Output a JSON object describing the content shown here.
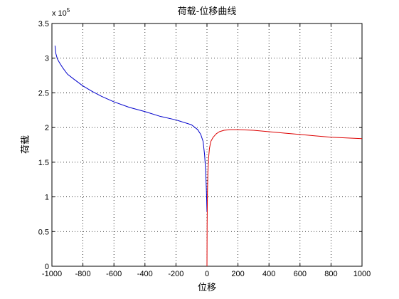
{
  "chart_data": {
    "type": "line",
    "title": "荷载-位移曲线",
    "xlabel": "位移",
    "ylabel": "荷载",
    "xlim": [
      -1000,
      1000
    ],
    "ylim": [
      0,
      3.5
    ],
    "y_multiplier_base": "x 10",
    "y_multiplier_exp": "5",
    "x_ticks": [
      "-1000",
      "-800",
      "-600",
      "-400",
      "-200",
      "0",
      "200",
      "400",
      "600",
      "800",
      "1000"
    ],
    "y_ticks": [
      "0",
      "0.5",
      "1",
      "1.5",
      "2",
      "2.5",
      "3",
      "3.5"
    ],
    "grid": true,
    "series": [
      {
        "color": "#0000cc",
        "x": [
          -980,
          -975,
          -965,
          -950,
          -930,
          -900,
          -860,
          -800,
          -740,
          -680,
          -600,
          -500,
          -400,
          -300,
          -200,
          -100,
          -60,
          -40,
          -25,
          -15,
          -8,
          -3,
          0
        ],
        "y": [
          3.18,
          3.07,
          2.99,
          2.93,
          2.86,
          2.77,
          2.7,
          2.6,
          2.52,
          2.45,
          2.37,
          2.29,
          2.23,
          2.16,
          2.11,
          2.04,
          1.97,
          1.9,
          1.8,
          1.6,
          1.35,
          1.05,
          0.78
        ]
      },
      {
        "color": "#dd0000",
        "x": [
          0,
          1,
          3,
          6,
          10,
          16,
          25,
          40,
          60,
          80,
          110,
          150,
          200,
          300,
          400,
          500,
          600,
          700,
          800,
          900,
          1000
        ],
        "y": [
          0.0,
          0.6,
          1.05,
          1.35,
          1.55,
          1.7,
          1.8,
          1.86,
          1.91,
          1.94,
          1.96,
          1.97,
          1.97,
          1.96,
          1.94,
          1.92,
          1.9,
          1.88,
          1.86,
          1.85,
          1.84
        ]
      }
    ]
  }
}
